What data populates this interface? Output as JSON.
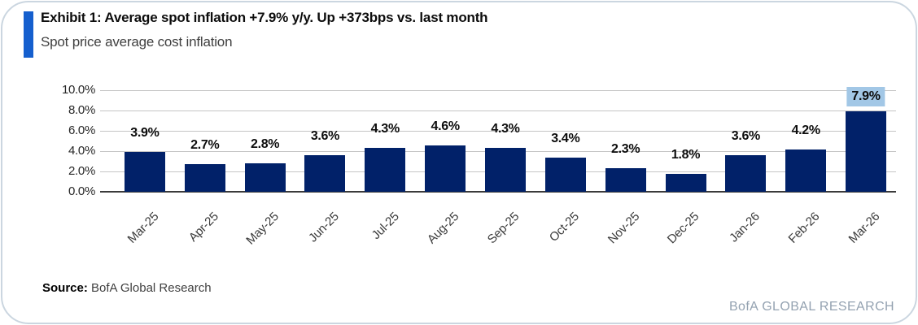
{
  "header": {
    "title": "Exhibit 1: Average spot inflation +7.9% y/y. Up +373bps vs. last month",
    "subtitle": "Spot price average cost inflation"
  },
  "chart_data": {
    "type": "bar",
    "title": "Spot price average cost inflation",
    "categories": [
      "Mar-25",
      "Apr-25",
      "May-25",
      "Jun-25",
      "Jul-25",
      "Aug-25",
      "Sep-25",
      "Oct-25",
      "Nov-25",
      "Dec-25",
      "Jan-26",
      "Feb-26",
      "Mar-26"
    ],
    "values": [
      3.9,
      2.7,
      2.8,
      3.6,
      4.3,
      4.6,
      4.3,
      3.4,
      2.3,
      1.8,
      3.6,
      4.2,
      7.9
    ],
    "data_labels": [
      "3.9%",
      "2.7%",
      "2.8%",
      "3.6%",
      "4.3%",
      "4.6%",
      "4.3%",
      "3.4%",
      "2.3%",
      "1.8%",
      "3.6%",
      "4.2%",
      "7.9%"
    ],
    "highlighted_index": 12,
    "yticks": [
      "10.0%",
      "8.0%",
      "6.0%",
      "4.0%",
      "2.0%",
      "0.0%"
    ],
    "ylim": [
      0,
      10
    ],
    "xlabel": "",
    "ylabel": "",
    "grid": true,
    "legend": false,
    "bar_color": "#012169",
    "highlight_color": "#a2c7e6"
  },
  "footer": {
    "source_label": "Source:",
    "source_text": "BofA Global Research",
    "brand": "BofA GLOBAL RESEARCH"
  },
  "colors": {
    "accent_bar": "#155fce",
    "bar": "#012169",
    "label_highlight": "#a2c7e6",
    "gridline": "#c5c5c5",
    "card_border": "#cbd6e0"
  }
}
